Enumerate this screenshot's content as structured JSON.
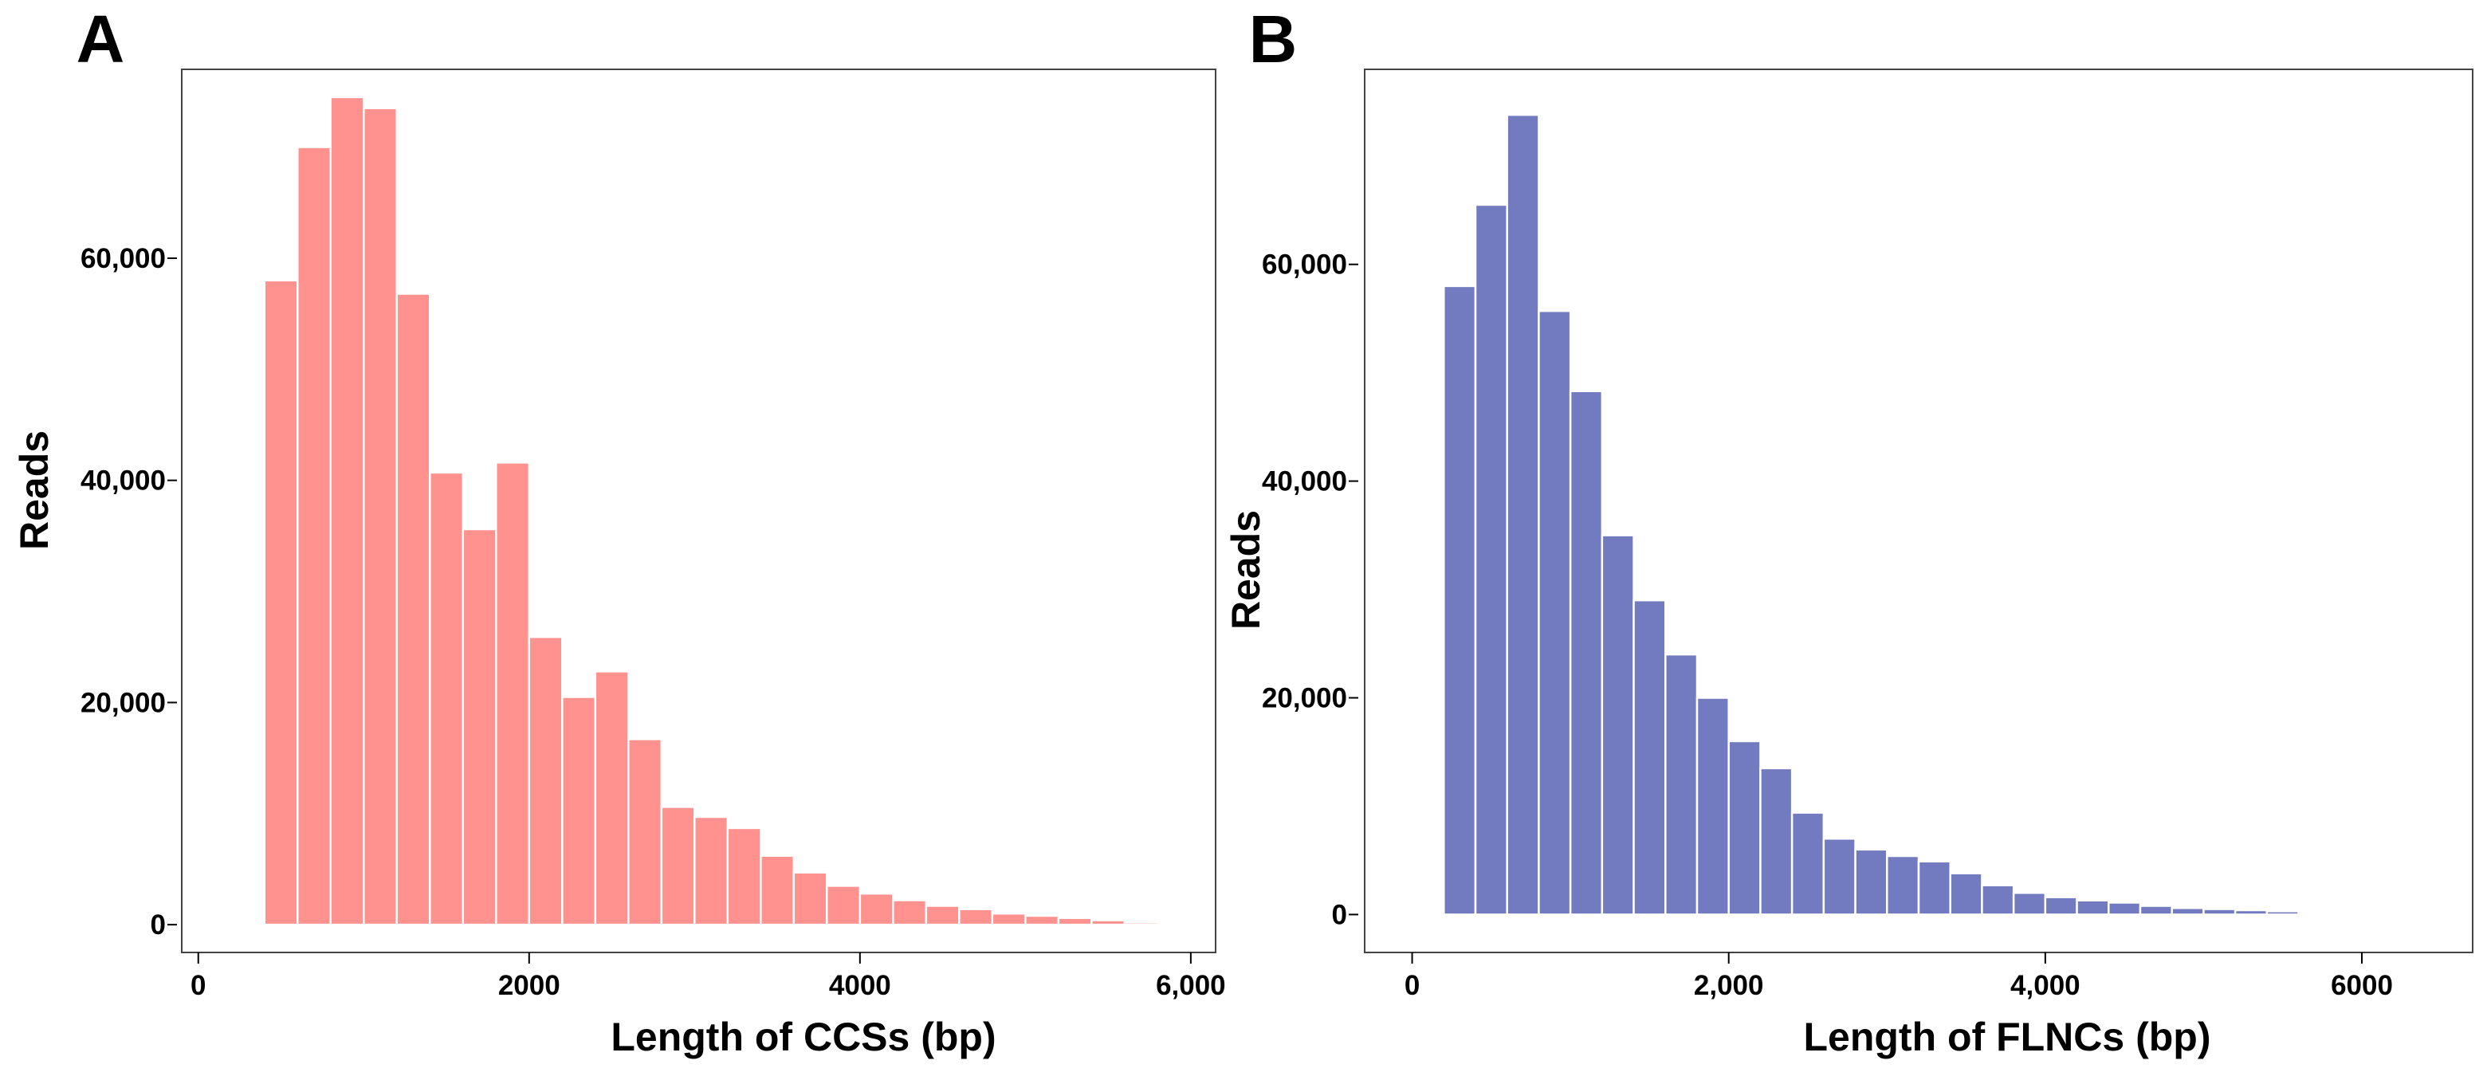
{
  "chart_data": [
    {
      "panel_label": "A",
      "type": "bar",
      "color": "#FF918E",
      "xlabel": "Length of CCSs (bp)",
      "ylabel": "Reads",
      "xlim": [
        -100,
        6150
      ],
      "ylim": [
        -2500,
        77000
      ],
      "bin_width": 200,
      "bins": [
        {
          "x0": 400,
          "value": 58000
        },
        {
          "x0": 600,
          "value": 70000
        },
        {
          "x0": 800,
          "value": 74500
        },
        {
          "x0": 1000,
          "value": 73500
        },
        {
          "x0": 1200,
          "value": 56800
        },
        {
          "x0": 1400,
          "value": 40700
        },
        {
          "x0": 1600,
          "value": 35600
        },
        {
          "x0": 1800,
          "value": 41600
        },
        {
          "x0": 2000,
          "value": 25900
        },
        {
          "x0": 2200,
          "value": 20500
        },
        {
          "x0": 2400,
          "value": 22800
        },
        {
          "x0": 2600,
          "value": 16700
        },
        {
          "x0": 2800,
          "value": 10600
        },
        {
          "x0": 3000,
          "value": 9700
        },
        {
          "x0": 3200,
          "value": 8700
        },
        {
          "x0": 3400,
          "value": 6200
        },
        {
          "x0": 3600,
          "value": 4700
        },
        {
          "x0": 3800,
          "value": 3500
        },
        {
          "x0": 4000,
          "value": 2800
        },
        {
          "x0": 4200,
          "value": 2200
        },
        {
          "x0": 4400,
          "value": 1700
        },
        {
          "x0": 4600,
          "value": 1400
        },
        {
          "x0": 4800,
          "value": 1000
        },
        {
          "x0": 5000,
          "value": 800
        },
        {
          "x0": 5200,
          "value": 600
        },
        {
          "x0": 5400,
          "value": 400
        },
        {
          "x0": 5600,
          "value": 200
        },
        {
          "x0": 5800,
          "value": 100
        }
      ],
      "x_ticks": [
        {
          "value": 0,
          "label": "0"
        },
        {
          "value": 2000,
          "label": "2000"
        },
        {
          "value": 4000,
          "label": "4000"
        },
        {
          "value": 6000,
          "label": "6,000"
        }
      ],
      "y_ticks": [
        {
          "value": 0,
          "label": "0"
        },
        {
          "value": 20000,
          "label": "20,000"
        },
        {
          "value": 40000,
          "label": "40,000"
        },
        {
          "value": 60000,
          "label": "60,000"
        }
      ]
    },
    {
      "panel_label": "B",
      "type": "bar",
      "color": "#727BBF",
      "xlabel": "Length of FLNCs (bp)",
      "ylabel": "Reads",
      "xlim": [
        -300,
        6700
      ],
      "ylim": [
        -3500,
        78000
      ],
      "bin_width": 200,
      "bins": [
        {
          "x0": 200,
          "value": 58000
        },
        {
          "x0": 400,
          "value": 65500
        },
        {
          "x0": 600,
          "value": 73800
        },
        {
          "x0": 800,
          "value": 55700
        },
        {
          "x0": 1000,
          "value": 48300
        },
        {
          "x0": 1200,
          "value": 35000
        },
        {
          "x0": 1400,
          "value": 29000
        },
        {
          "x0": 1600,
          "value": 24000
        },
        {
          "x0": 1800,
          "value": 20000
        },
        {
          "x0": 2000,
          "value": 16000
        },
        {
          "x0": 2200,
          "value": 13500
        },
        {
          "x0": 2400,
          "value": 9400
        },
        {
          "x0": 2600,
          "value": 7000
        },
        {
          "x0": 2800,
          "value": 6000
        },
        {
          "x0": 3000,
          "value": 5400
        },
        {
          "x0": 3200,
          "value": 4900
        },
        {
          "x0": 3400,
          "value": 3800
        },
        {
          "x0": 3600,
          "value": 2700
        },
        {
          "x0": 3800,
          "value": 2000
        },
        {
          "x0": 4000,
          "value": 1600
        },
        {
          "x0": 4200,
          "value": 1300
        },
        {
          "x0": 4400,
          "value": 1100
        },
        {
          "x0": 4600,
          "value": 800
        },
        {
          "x0": 4800,
          "value": 600
        },
        {
          "x0": 5000,
          "value": 500
        },
        {
          "x0": 5200,
          "value": 400
        },
        {
          "x0": 5400,
          "value": 300
        },
        {
          "x0": 5600,
          "value": 150
        }
      ],
      "x_ticks": [
        {
          "value": 0,
          "label": "0"
        },
        {
          "value": 2000,
          "label": "2,000"
        },
        {
          "value": 4000,
          "label": "4,000"
        },
        {
          "value": 6000,
          "label": "6000"
        }
      ],
      "y_ticks": [
        {
          "value": 0,
          "label": "0"
        },
        {
          "value": 20000,
          "label": "20,000"
        },
        {
          "value": 40000,
          "label": "40,000"
        },
        {
          "value": 60000,
          "label": "60,000"
        }
      ]
    }
  ]
}
